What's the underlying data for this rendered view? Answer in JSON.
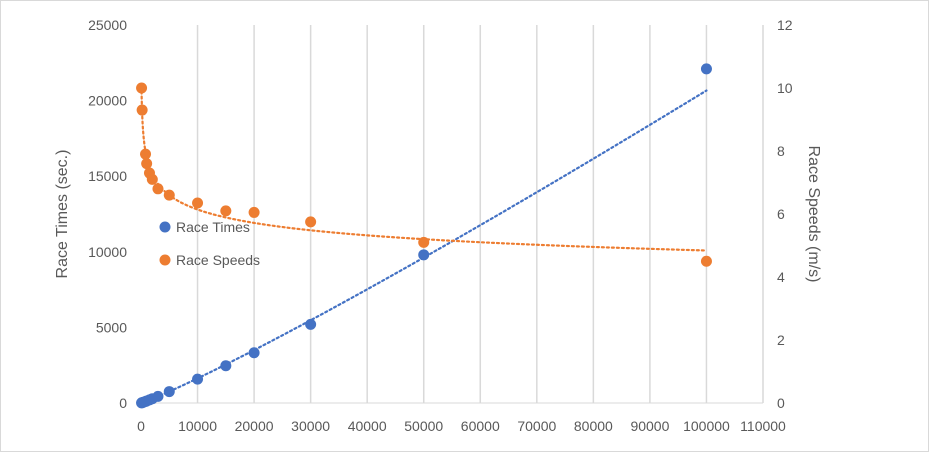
{
  "chart_data": {
    "type": "scatter",
    "title": "",
    "xlabel": "",
    "ylabel": "Race Times (sec.)",
    "y2label": "Race Speeds (m/s)",
    "xlim": [
      0,
      110000
    ],
    "ylim": [
      0,
      25000
    ],
    "y2lim": [
      0,
      12
    ],
    "x_ticks": [
      0,
      10000,
      20000,
      30000,
      40000,
      50000,
      60000,
      70000,
      80000,
      90000,
      100000,
      110000
    ],
    "y_ticks": [
      0,
      5000,
      10000,
      15000,
      20000,
      25000
    ],
    "y2_ticks": [
      0,
      2,
      4,
      6,
      8,
      10,
      12
    ],
    "grid": "vertical",
    "legend_position": "center-left",
    "trendlines": "dotted",
    "series": [
      {
        "name": "Race Times",
        "axis": "left",
        "color": "#4472c4",
        "points": [
          [
            100,
            10
          ],
          [
            200,
            21
          ],
          [
            400,
            47
          ],
          [
            800,
            103
          ],
          [
            1000,
            132
          ],
          [
            1500,
            206
          ],
          [
            2000,
            282
          ],
          [
            3000,
            440
          ],
          [
            5000,
            756
          ],
          [
            10000,
            1577
          ],
          [
            15000,
            2465
          ],
          [
            20000,
            3321
          ],
          [
            30000,
            5198
          ],
          [
            50000,
            9800
          ],
          [
            100000,
            22100
          ]
        ]
      },
      {
        "name": "Race Speeds",
        "axis": "right",
        "color": "#ed7d31",
        "points": [
          [
            100,
            10.0
          ],
          [
            200,
            9.3
          ],
          [
            800,
            7.9
          ],
          [
            1000,
            7.6
          ],
          [
            1500,
            7.3
          ],
          [
            2000,
            7.1
          ],
          [
            3000,
            6.8
          ],
          [
            5000,
            6.6
          ],
          [
            10000,
            6.35
          ],
          [
            15000,
            6.1
          ],
          [
            20000,
            6.05
          ],
          [
            30000,
            5.75
          ],
          [
            50000,
            5.1
          ],
          [
            100000,
            4.5
          ]
        ]
      }
    ]
  }
}
